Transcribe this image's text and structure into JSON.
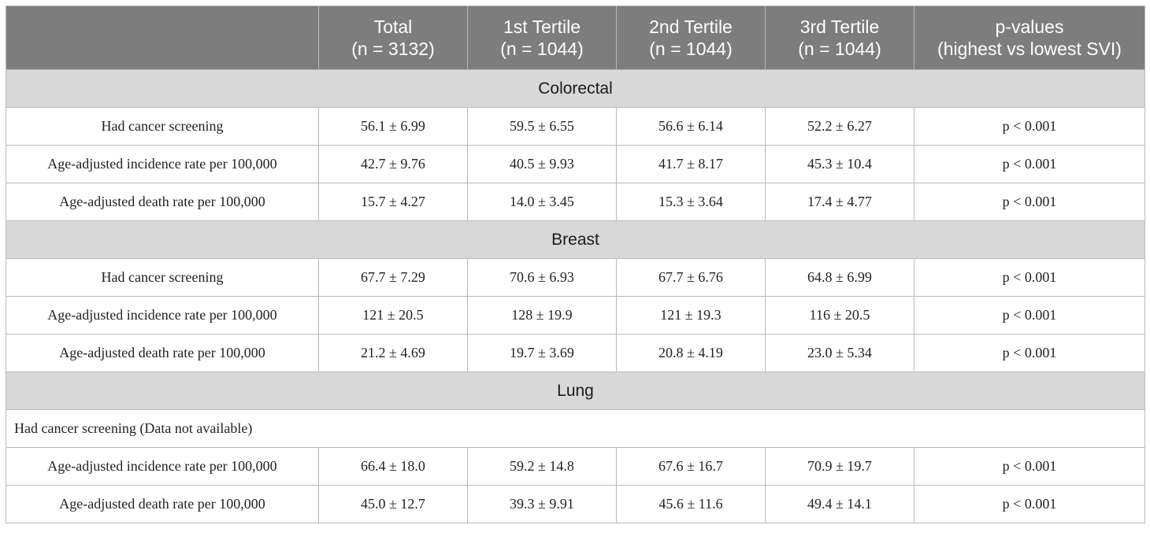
{
  "header": {
    "col0": "",
    "total": [
      "Total",
      "(n = 3132)"
    ],
    "t1": [
      "1st Tertile",
      "(n = 1044)"
    ],
    "t2": [
      "2nd Tertile",
      "(n = 1044)"
    ],
    "t3": [
      "3rd Tertile",
      "(n = 1044)"
    ],
    "p": [
      "p-values",
      "(highest vs lowest SVI)"
    ]
  },
  "sections": [
    {
      "title": "Colorectal",
      "rows": [
        {
          "label": "Had cancer screening",
          "total": "56.1 ± 6.99",
          "t1": "59.5 ± 6.55",
          "t2": "56.6 ± 6.14",
          "t3": "52.2 ± 6.27",
          "p": "p < 0.001"
        },
        {
          "label": "Age-adjusted incidence rate per 100,000",
          "total": "42.7 ± 9.76",
          "t1": "40.5 ± 9.93",
          "t2": "41.7 ± 8.17",
          "t3": "45.3 ± 10.4",
          "p": "p < 0.001"
        },
        {
          "label": "Age-adjusted death rate per 100,000",
          "total": "15.7 ± 4.27",
          "t1": "14.0 ± 3.45",
          "t2": "15.3 ± 3.64",
          "t3": "17.4 ± 4.77",
          "p": "p < 0.001"
        }
      ]
    },
    {
      "title": "Breast",
      "rows": [
        {
          "label": "Had cancer screening",
          "total": "67.7 ± 7.29",
          "t1": "70.6 ± 6.93",
          "t2": "67.7 ± 6.76",
          "t3": "64.8 ± 6.99",
          "p": "p < 0.001"
        },
        {
          "label": "Age-adjusted incidence rate per 100,000",
          "total": "121 ± 20.5",
          "t1": "128 ± 19.9",
          "t2": "121 ± 19.3",
          "t3": "116 ± 20.5",
          "p": "p < 0.001"
        },
        {
          "label": "Age-adjusted death rate per 100,000",
          "total": "21.2 ± 4.69",
          "t1": "19.7 ± 3.69",
          "t2": "20.8 ± 4.19",
          "t3": "23.0 ± 5.34",
          "p": "p < 0.001"
        }
      ]
    },
    {
      "title": "Lung",
      "note": "Had cancer screening (Data not available)",
      "rows": [
        {
          "label": "Age-adjusted incidence rate per 100,000",
          "total": "66.4 ± 18.0",
          "t1": "59.2 ± 14.8",
          "t2": "67.6 ± 16.7",
          "t3": "70.9 ± 19.7",
          "p": "p < 0.001"
        },
        {
          "label": "Age-adjusted death rate per 100,000",
          "total": "45.0 ± 12.7",
          "t1": "39.3 ± 9.91",
          "t2": "45.6 ± 11.6",
          "t3": "49.4 ± 14.1",
          "p": "p < 0.001"
        }
      ]
    }
  ],
  "colors": {
    "header_bg": "#7d7d7d",
    "section_bg": "#d8d8d8",
    "border": "#b9b9b9"
  }
}
